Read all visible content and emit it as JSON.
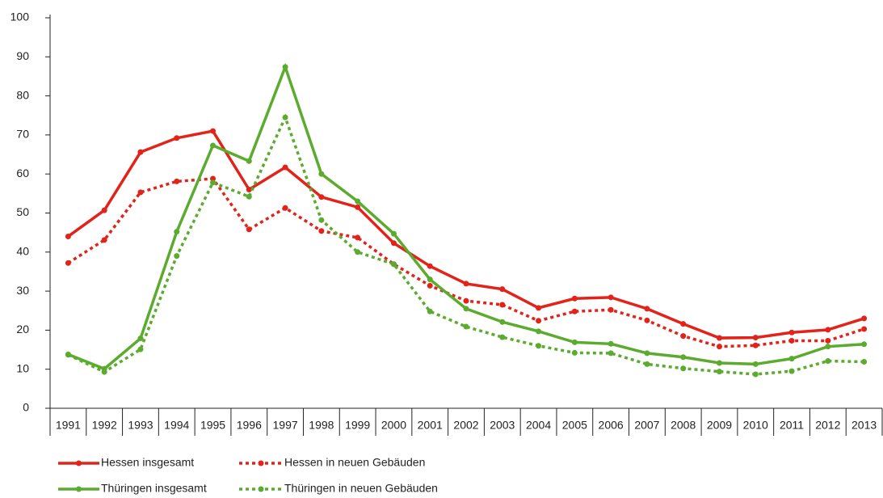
{
  "chart_data": {
    "type": "line",
    "categories": [
      "1991",
      "1992",
      "1993",
      "1994",
      "1995",
      "1996",
      "1997",
      "1998",
      "1999",
      "2000",
      "2001",
      "2002",
      "2003",
      "2004",
      "2005",
      "2006",
      "2007",
      "2008",
      "2009",
      "2010",
      "2011",
      "2012",
      "2013"
    ],
    "series": [
      {
        "name": "Hessen insgesamt",
        "color": "#e2231a",
        "line_style": "solid",
        "values": [
          44,
          50.7,
          65.6,
          69.2,
          71,
          56,
          61.7,
          54.1,
          51.5,
          42.3,
          36.4,
          31.9,
          30.5,
          25.7,
          28.1,
          28.4,
          25.5,
          21.6,
          18,
          18.1,
          19.4,
          20.1,
          23
        ]
      },
      {
        "name": "Hessen in neuen Gebäuden",
        "color": "#e2231a",
        "line_style": "dotted",
        "values": [
          37.2,
          43.1,
          55.3,
          58.1,
          58.8,
          45.8,
          51.3,
          45.4,
          43.7,
          36.9,
          31.4,
          27.5,
          26.5,
          22.4,
          24.8,
          25.2,
          22.5,
          18.5,
          15.8,
          16.1,
          17.3,
          17.3,
          20.3
        ]
      },
      {
        "name": "Thüringen insgesamt",
        "color": "#5aab2e",
        "line_style": "solid",
        "values": [
          13.8,
          10.1,
          17.9,
          45.2,
          67.3,
          63.3,
          87.4,
          60,
          53,
          44.7,
          33,
          25.5,
          22.1,
          19.7,
          16.9,
          16.5,
          14.1,
          13.1,
          11.6,
          11.3,
          12.7,
          15.8,
          16.4
        ]
      },
      {
        "name": "Thüringen in neuen Gebäuden",
        "color": "#5aab2e",
        "line_style": "dotted",
        "values": [
          13.7,
          9.3,
          15.1,
          39,
          57.8,
          54.2,
          74.5,
          48.2,
          40,
          36.9,
          24.8,
          20.9,
          18.2,
          16,
          14.2,
          14.1,
          11.3,
          10.2,
          9.4,
          8.7,
          9.5,
          12.1,
          11.9
        ]
      }
    ],
    "ylim": [
      0,
      100
    ],
    "yticks": [
      0,
      10,
      20,
      30,
      40,
      50,
      60,
      70,
      80,
      90,
      100
    ],
    "grid": false
  }
}
